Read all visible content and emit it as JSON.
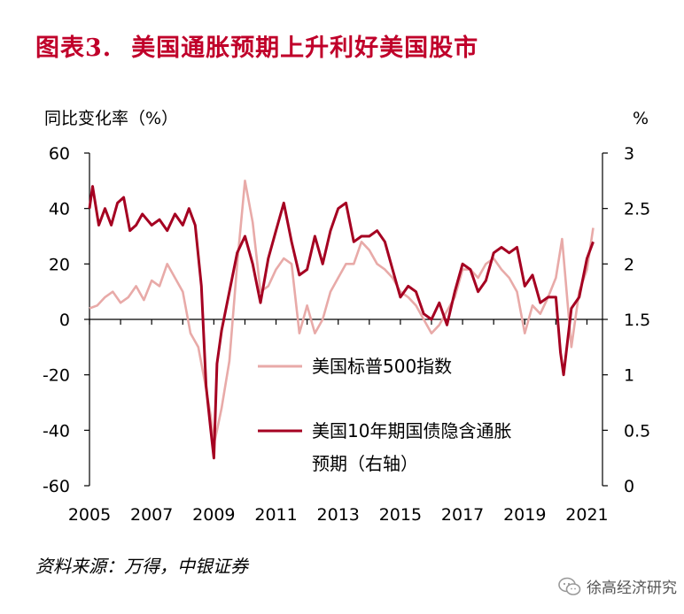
{
  "figure": {
    "label": "图表3.",
    "title": "美国通胀预期上升利好美国股市",
    "source": "资料来源：万得，中银证券",
    "watermark": "徐高经济研究",
    "watermark_icon": "wechat-icon"
  },
  "colors": {
    "title": "#c0002a",
    "sp500": "#e8aaa8",
    "breakeven": "#a50021",
    "axis": "#000000"
  },
  "chart_data": {
    "type": "line",
    "title": "美国通胀预期上升利好美国股市",
    "ylabel_left": "同比变化率（%）",
    "ylabel_right": "%",
    "ylim_left": [
      -60,
      60
    ],
    "ylim_right": [
      0,
      3
    ],
    "yticks_left": [
      60,
      40,
      20,
      0,
      -20,
      -40,
      -60
    ],
    "yticks_right": [
      3,
      2.5,
      2,
      1.5,
      1,
      0.5,
      0
    ],
    "xlim": [
      2005,
      2021.5
    ],
    "xticks": [
      "2005",
      "2007",
      "2009",
      "2011",
      "2013",
      "2015",
      "2017",
      "2019",
      "2021"
    ],
    "grid": false,
    "legend_position": "center-right",
    "series": [
      {
        "name": "美国标普500指数",
        "axis": "left",
        "x": [
          2005.0,
          2005.25,
          2005.5,
          2005.75,
          2006.0,
          2006.25,
          2006.5,
          2006.75,
          2007.0,
          2007.25,
          2007.5,
          2007.75,
          2008.0,
          2008.25,
          2008.5,
          2008.75,
          2008.9,
          2009.0,
          2009.1,
          2009.25,
          2009.5,
          2009.75,
          2010.0,
          2010.25,
          2010.5,
          2010.75,
          2011.0,
          2011.25,
          2011.5,
          2011.75,
          2012.0,
          2012.25,
          2012.5,
          2012.75,
          2013.0,
          2013.25,
          2013.5,
          2013.75,
          2014.0,
          2014.25,
          2014.5,
          2014.75,
          2015.0,
          2015.25,
          2015.5,
          2015.75,
          2016.0,
          2016.25,
          2016.5,
          2016.75,
          2017.0,
          2017.25,
          2017.5,
          2017.75,
          2018.0,
          2018.25,
          2018.5,
          2018.75,
          2019.0,
          2019.25,
          2019.5,
          2019.75,
          2020.0,
          2020.2,
          2020.5,
          2020.75,
          2021.0,
          2021.2
        ],
        "values": [
          4,
          5,
          8,
          10,
          6,
          8,
          12,
          7,
          14,
          12,
          20,
          15,
          10,
          -5,
          -10,
          -25,
          -35,
          -45,
          -40,
          -32,
          -15,
          20,
          50,
          35,
          10,
          12,
          18,
          22,
          20,
          -5,
          5,
          -5,
          0,
          10,
          15,
          20,
          20,
          28,
          25,
          20,
          18,
          15,
          10,
          8,
          5,
          0,
          -5,
          -2,
          3,
          8,
          18,
          18,
          15,
          20,
          22,
          18,
          15,
          10,
          -5,
          5,
          2,
          8,
          15,
          29,
          -10,
          10,
          18,
          33
        ]
      },
      {
        "name": "美国10年期国债隐含通胀预期（右轴）",
        "axis": "right",
        "x": [
          2005.0,
          2005.1,
          2005.3,
          2005.5,
          2005.7,
          2005.9,
          2006.1,
          2006.3,
          2006.5,
          2006.7,
          2007.0,
          2007.25,
          2007.5,
          2007.75,
          2008.0,
          2008.2,
          2008.4,
          2008.6,
          2008.75,
          2008.9,
          2009.0,
          2009.1,
          2009.25,
          2009.5,
          2009.75,
          2010.0,
          2010.25,
          2010.5,
          2010.75,
          2011.0,
          2011.25,
          2011.5,
          2011.75,
          2012.0,
          2012.25,
          2012.5,
          2012.75,
          2013.0,
          2013.25,
          2013.5,
          2013.75,
          2014.0,
          2014.25,
          2014.5,
          2014.75,
          2015.0,
          2015.25,
          2015.5,
          2015.75,
          2016.0,
          2016.25,
          2016.5,
          2016.75,
          2017.0,
          2017.25,
          2017.5,
          2017.75,
          2018.0,
          2018.25,
          2018.5,
          2018.75,
          2019.0,
          2019.25,
          2019.5,
          2019.75,
          2020.0,
          2020.15,
          2020.25,
          2020.5,
          2020.75,
          2021.0,
          2021.2
        ],
        "values": [
          2.5,
          2.7,
          2.35,
          2.5,
          2.35,
          2.55,
          2.6,
          2.3,
          2.35,
          2.45,
          2.35,
          2.4,
          2.3,
          2.45,
          2.35,
          2.5,
          2.35,
          1.8,
          0.9,
          0.5,
          0.25,
          1.1,
          1.4,
          1.75,
          2.1,
          2.25,
          2.0,
          1.65,
          2.05,
          2.3,
          2.55,
          2.2,
          1.9,
          1.95,
          2.25,
          2.0,
          2.3,
          2.5,
          2.55,
          2.2,
          2.25,
          2.25,
          2.3,
          2.2,
          1.95,
          1.7,
          1.8,
          1.75,
          1.55,
          1.5,
          1.65,
          1.45,
          1.75,
          2.0,
          1.95,
          1.75,
          1.85,
          2.1,
          2.15,
          2.1,
          2.15,
          1.8,
          1.9,
          1.65,
          1.7,
          1.7,
          1.2,
          1.0,
          1.6,
          1.7,
          2.05,
          2.2
        ]
      }
    ]
  }
}
